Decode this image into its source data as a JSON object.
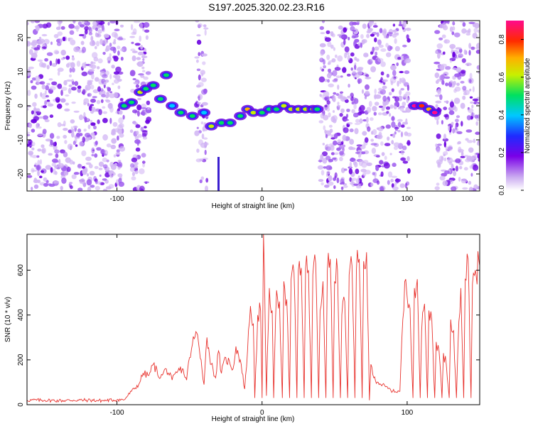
{
  "title": "S197.2025.320.02.23.R16",
  "colors": {
    "line": "#e8322d",
    "axis": "#000000"
  },
  "chart_data": [
    {
      "type": "heatmap",
      "xlabel": "Height of straight line (km)",
      "ylabel": "Frequency (Hz)",
      "xlim": [
        -162,
        150
      ],
      "ylim": [
        -25,
        25
      ],
      "xticks": [
        -100,
        0,
        100
      ],
      "xtick_labels": [
        "-100",
        "0",
        "100"
      ],
      "yticks": [
        -20,
        -10,
        0,
        10,
        20
      ],
      "ytick_labels": [
        "-20",
        "-10",
        "0",
        "10",
        "20"
      ],
      "colorbar": {
        "label": "Normalized spectral amplitude",
        "range": [
          0,
          0.9
        ],
        "ticks": [
          0,
          0.2,
          0.4,
          0.6,
          0.8
        ],
        "tick_labels": [
          "0.0",
          "0.2",
          "0.4",
          "0.6",
          "0.8"
        ],
        "colormap": "rainbow (white-violet-blue-cyan-green-yellow-red-magenta)"
      },
      "noise_regions_km": [
        [
          -162,
          -95
        ],
        [
          -90,
          -78
        ],
        [
          -45,
          -38
        ],
        [
          40,
          102
        ],
        [
          120,
          150
        ]
      ],
      "gap_regions_km": [
        [
          -95,
          -90
        ],
        [
          102,
          112
        ]
      ],
      "ridge": [
        {
          "x": -95,
          "y": 0,
          "amp": 0.45
        },
        {
          "x": -90,
          "y": 1,
          "amp": 0.5
        },
        {
          "x": -84,
          "y": 4,
          "amp": 0.55
        },
        {
          "x": -80,
          "y": 5,
          "amp": 0.5
        },
        {
          "x": -75,
          "y": 6,
          "amp": 0.45
        },
        {
          "x": -70,
          "y": 2,
          "amp": 0.4
        },
        {
          "x": -66,
          "y": 9,
          "amp": 0.5
        },
        {
          "x": -62,
          "y": 0,
          "amp": 0.35
        },
        {
          "x": -56,
          "y": -2,
          "amp": 0.45
        },
        {
          "x": -48,
          "y": -3,
          "amp": 0.4
        },
        {
          "x": -40,
          "y": -2,
          "amp": 0.35
        },
        {
          "x": -35,
          "y": -6,
          "amp": 0.6
        },
        {
          "x": -28,
          "y": -5,
          "amp": 0.45
        },
        {
          "x": -22,
          "y": -5,
          "amp": 0.5
        },
        {
          "x": -15,
          "y": -3,
          "amp": 0.5
        },
        {
          "x": -10,
          "y": -1,
          "amp": 0.65
        },
        {
          "x": -6,
          "y": -2,
          "amp": 0.55
        },
        {
          "x": 0,
          "y": -2,
          "amp": 0.5
        },
        {
          "x": 5,
          "y": -1,
          "amp": 0.45
        },
        {
          "x": 10,
          "y": -1,
          "amp": 0.5
        },
        {
          "x": 15,
          "y": 0,
          "amp": 0.6
        },
        {
          "x": 20,
          "y": -1,
          "amp": 0.55
        },
        {
          "x": 25,
          "y": -1,
          "amp": 0.55
        },
        {
          "x": 30,
          "y": -1,
          "amp": 0.55
        },
        {
          "x": 35,
          "y": -1,
          "amp": 0.55
        },
        {
          "x": 38,
          "y": -1,
          "amp": 0.5
        },
        {
          "x": 105,
          "y": 0,
          "amp": 0.8
        },
        {
          "x": 110,
          "y": 0,
          "amp": 0.75
        },
        {
          "x": 115,
          "y": -1,
          "amp": 0.7
        },
        {
          "x": 119,
          "y": -2,
          "amp": 0.8
        }
      ],
      "low_streak": {
        "x": -30,
        "y_range": [
          -25,
          -15
        ],
        "amp": 0.35
      }
    },
    {
      "type": "line",
      "xlabel": "Height of straight line (km)",
      "ylabel": "SNR (10 * v/v)",
      "xlim": [
        -162,
        150
      ],
      "ylim": [
        0,
        760
      ],
      "xticks": [
        -100,
        0,
        100
      ],
      "xtick_labels": [
        "-100",
        "0",
        "100"
      ],
      "yticks": [
        0,
        200,
        400,
        600
      ],
      "ytick_labels": [
        "0",
        "200",
        "400",
        "600"
      ],
      "series": [
        {
          "color": "#e8322d",
          "x": [
            -162,
            -150,
            -140,
            -130,
            -120,
            -110,
            -100,
            -95,
            -90,
            -85,
            -82,
            -78,
            -75,
            -70,
            -66,
            -62,
            -58,
            -55,
            -52,
            -50,
            -48,
            -45,
            -42,
            -40,
            -38,
            -35,
            -32,
            -30,
            -28,
            -25,
            -22,
            -20,
            -18,
            -15,
            -12,
            -10,
            -8,
            -6,
            -5,
            -3,
            -1,
            0,
            1,
            3,
            5,
            7,
            8,
            10,
            12,
            14,
            15,
            17,
            19,
            20,
            22,
            24,
            25,
            27,
            29,
            30,
            32,
            34,
            35,
            37,
            39,
            40,
            42,
            44,
            45,
            47,
            49,
            50,
            52,
            54,
            55,
            57,
            59,
            60,
            62,
            64,
            65,
            67,
            69,
            70,
            72,
            74,
            75,
            77,
            80,
            85,
            90,
            95,
            97,
            99,
            100,
            102,
            104,
            105,
            107,
            109,
            110,
            112,
            114,
            115,
            117,
            119,
            120,
            122,
            124,
            125,
            127,
            129,
            130,
            132,
            134,
            135,
            137,
            139,
            140,
            142,
            144,
            145,
            147,
            150
          ],
          "y": [
            20,
            20,
            18,
            20,
            20,
            18,
            22,
            22,
            60,
            90,
            140,
            130,
            180,
            120,
            160,
            110,
            150,
            160,
            110,
            210,
            270,
            320,
            200,
            90,
            300,
            180,
            120,
            240,
            140,
            210,
            180,
            160,
            260,
            200,
            70,
            240,
            440,
            360,
            30,
            400,
            420,
            30,
            760,
            40,
            520,
            420,
            30,
            510,
            460,
            30,
            550,
            470,
            30,
            560,
            590,
            30,
            600,
            610,
            30,
            610,
            600,
            30,
            580,
            630,
            30,
            420,
            550,
            30,
            600,
            650,
            30,
            550,
            600,
            30,
            400,
            460,
            30,
            580,
            620,
            30,
            600,
            650,
            30,
            640,
            680,
            20,
            180,
            120,
            100,
            80,
            60,
            60,
            380,
            560,
            480,
            430,
            30,
            520,
            560,
            30,
            330,
            450,
            30,
            420,
            380,
            30,
            280,
            240,
            30,
            230,
            180,
            30,
            380,
            330,
            30,
            260,
            520,
            30,
            560,
            650,
            30,
            540,
            600,
            620
          ]
        }
      ]
    }
  ]
}
